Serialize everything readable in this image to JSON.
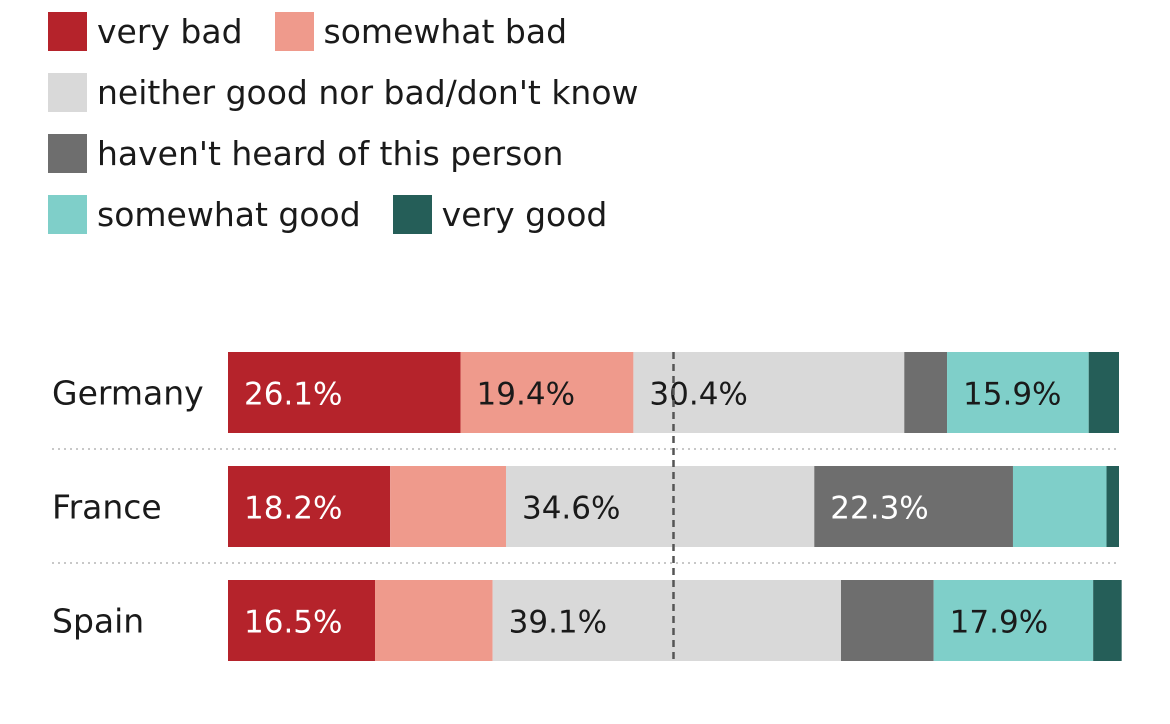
{
  "chart_data": {
    "type": "bar",
    "orientation": "horizontal",
    "stacked": true,
    "categories": [
      "Germany",
      "France",
      "Spain"
    ],
    "series": [
      {
        "name": "very bad",
        "color": "#b5232b",
        "values": [
          26.1,
          18.2,
          16.5
        ],
        "labels": [
          "26.1%",
          "18.2%",
          "16.5%"
        ]
      },
      {
        "name": "somewhat bad",
        "color": "#ef9a8c",
        "values": [
          19.4,
          13.0,
          13.2
        ],
        "labels": [
          "19.4%",
          "",
          ""
        ]
      },
      {
        "name": "neither good nor bad/don't know",
        "color": "#d9d9d9",
        "values": [
          30.4,
          34.6,
          39.1
        ],
        "labels": [
          "30.4%",
          "34.6%",
          "39.1%"
        ]
      },
      {
        "name": "haven't heard of this person",
        "color": "#6e6e6e",
        "values": [
          4.8,
          22.3,
          10.4
        ],
        "labels": [
          "",
          "22.3%",
          ""
        ]
      },
      {
        "name": "somewhat good",
        "color": "#7fcfc9",
        "values": [
          15.9,
          10.5,
          17.9
        ],
        "labels": [
          "15.9%",
          "",
          "17.9%"
        ]
      },
      {
        "name": "very good",
        "color": "#255e58",
        "values": [
          3.4,
          1.4,
          3.2
        ],
        "labels": [
          "",
          "",
          ""
        ]
      }
    ],
    "xlim": [
      0,
      100
    ],
    "midline": 50,
    "legend_position": "top"
  }
}
